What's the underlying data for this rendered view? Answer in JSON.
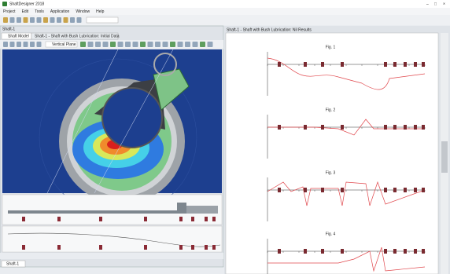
{
  "window": {
    "title": "ShaftDesigner 2018"
  },
  "menu": [
    "Project",
    "Edit",
    "Tools",
    "Application",
    "Window",
    "Help"
  ],
  "left_pane": {
    "title": "Shaft-1",
    "tabs": [
      "Shaft Model",
      "Shaft-1 - Shaft with Bush Lubrication: Initial Data"
    ],
    "view_label": "Vertical Plane"
  },
  "right_pane": {
    "title": "Shaft-1 - Shaft with Bush Lubrication: Nil Results",
    "figures": [
      "Fig. 1",
      "Fig. 2",
      "Fig. 3",
      "Fig. 4"
    ]
  },
  "bottom_tab": "Shaft-1"
}
